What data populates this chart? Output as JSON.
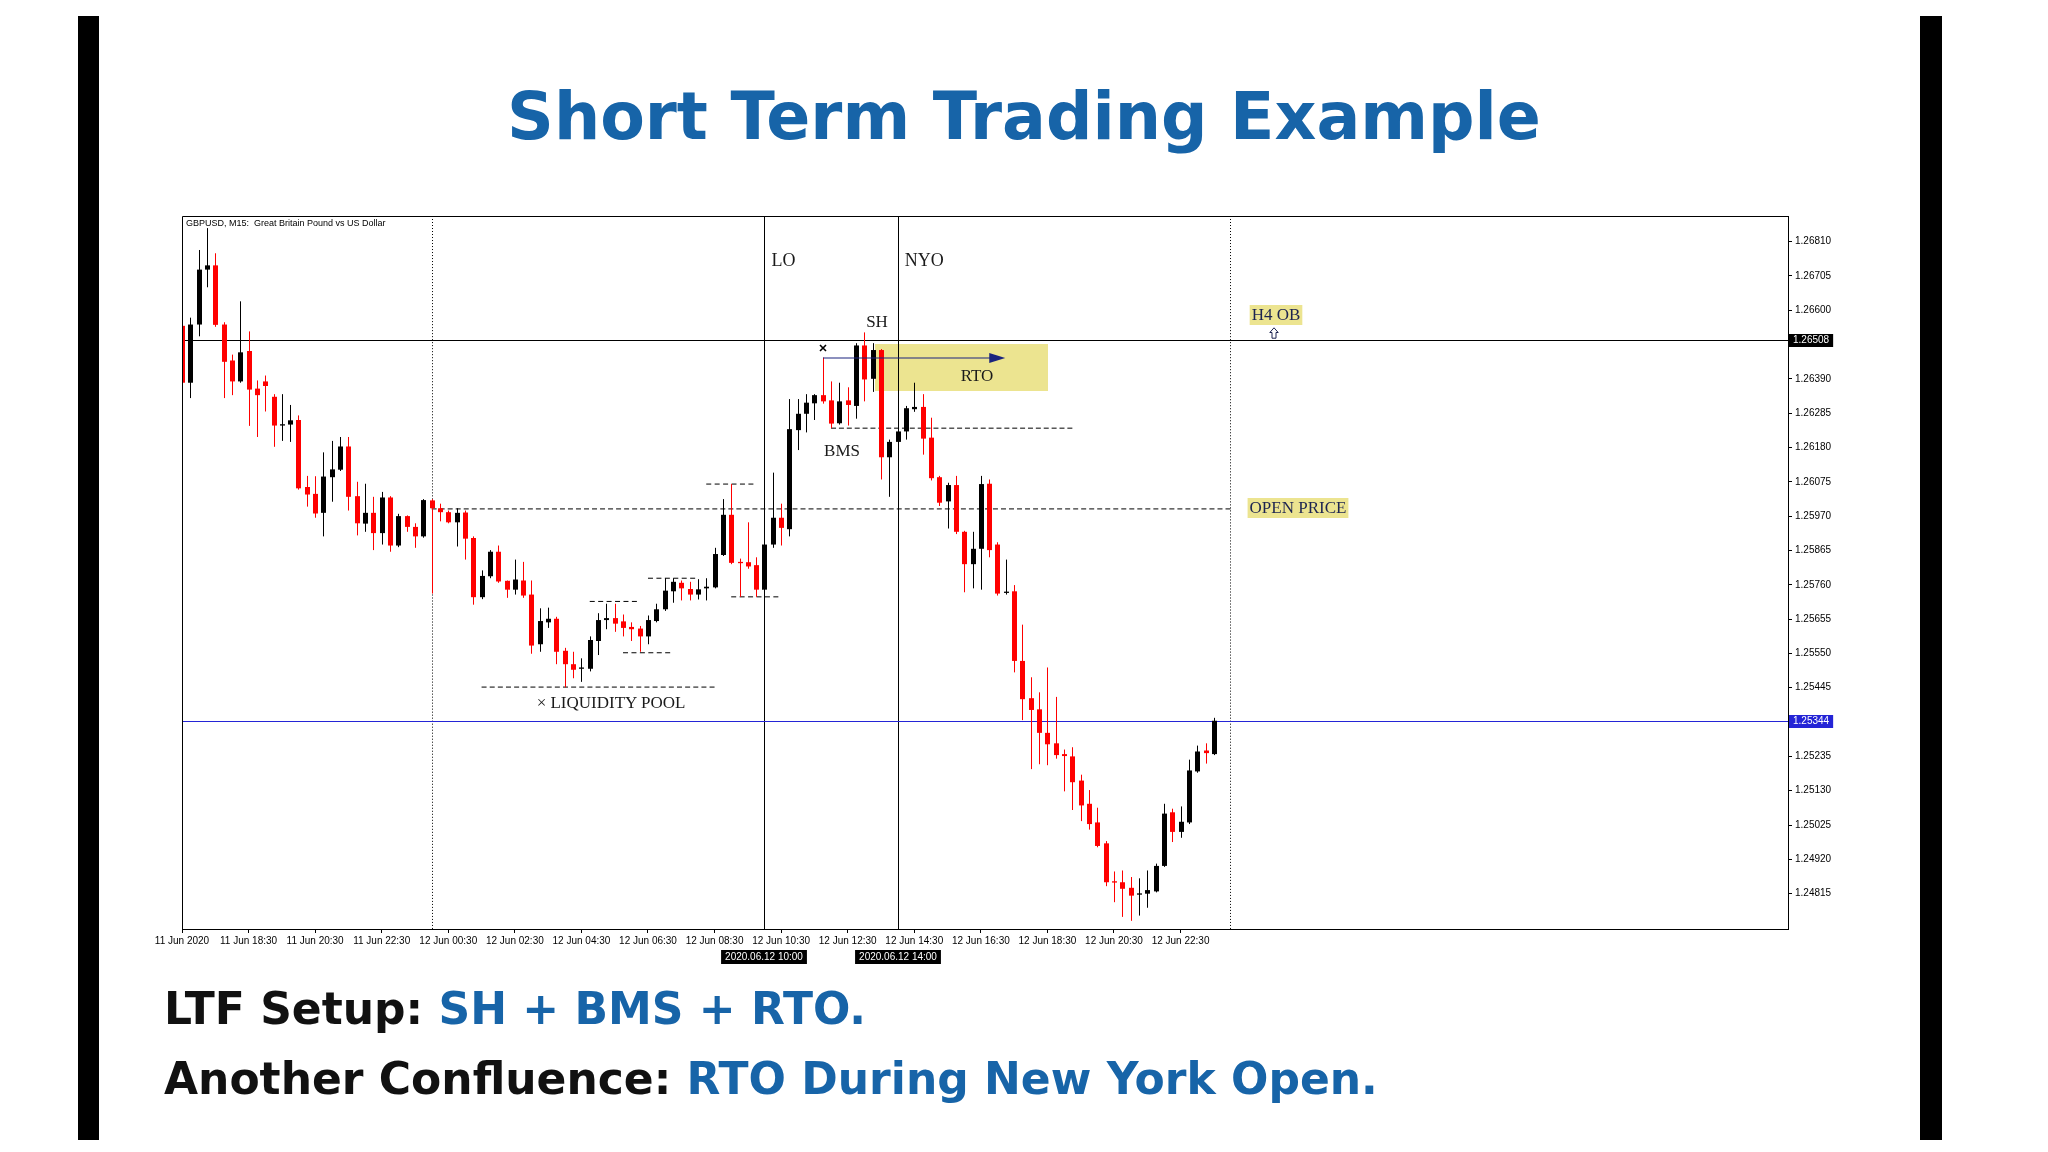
{
  "chart_data": {
    "type": "candlestick",
    "title": "Short Term Trading Example",
    "subtitle": "GBPUSD, M15:  Great Britain Pound vs US Dollar",
    "x": [
      "2020-06-11T16:30",
      "2020-06-11T16:45",
      "2020-06-11T17:00",
      "2020-06-11T17:15",
      "2020-06-11T17:30",
      "2020-06-11T17:45",
      "2020-06-11T18:00",
      "2020-06-11T18:15",
      "2020-06-11T18:30",
      "2020-06-11T18:45",
      "2020-06-11T19:00",
      "2020-06-11T19:15",
      "2020-06-11T19:30",
      "2020-06-11T19:45",
      "2020-06-11T20:00",
      "2020-06-11T20:15",
      "2020-06-11T20:30",
      "2020-06-11T20:45",
      "2020-06-11T21:00",
      "2020-06-11T21:15",
      "2020-06-11T21:30",
      "2020-06-11T21:45",
      "2020-06-11T22:00",
      "2020-06-11T22:15",
      "2020-06-11T22:30",
      "2020-06-11T22:45",
      "2020-06-11T23:00",
      "2020-06-11T23:15",
      "2020-06-11T23:30",
      "2020-06-11T23:45",
      "2020-06-12T00:00",
      "2020-06-12T00:15",
      "2020-06-12T00:30",
      "2020-06-12T00:45",
      "2020-06-12T01:00",
      "2020-06-12T01:15",
      "2020-06-12T01:30",
      "2020-06-12T01:45",
      "2020-06-12T02:00",
      "2020-06-12T02:15",
      "2020-06-12T02:30",
      "2020-06-12T02:45",
      "2020-06-12T03:00",
      "2020-06-12T03:15",
      "2020-06-12T03:30",
      "2020-06-12T03:45",
      "2020-06-12T04:00",
      "2020-06-12T04:15",
      "2020-06-12T04:30",
      "2020-06-12T04:45",
      "2020-06-12T05:00",
      "2020-06-12T05:15",
      "2020-06-12T05:30",
      "2020-06-12T05:45",
      "2020-06-12T06:00",
      "2020-06-12T06:15",
      "2020-06-12T06:30",
      "2020-06-12T06:45",
      "2020-06-12T07:00",
      "2020-06-12T07:15",
      "2020-06-12T07:30",
      "2020-06-12T07:45",
      "2020-06-12T08:00",
      "2020-06-12T08:15",
      "2020-06-12T08:30",
      "2020-06-12T08:45",
      "2020-06-12T09:00",
      "2020-06-12T09:15",
      "2020-06-12T09:30",
      "2020-06-12T09:45",
      "2020-06-12T10:00",
      "2020-06-12T10:15",
      "2020-06-12T10:30",
      "2020-06-12T10:45",
      "2020-06-12T11:00",
      "2020-06-12T11:15",
      "2020-06-12T11:30",
      "2020-06-12T11:45",
      "2020-06-12T12:00",
      "2020-06-12T12:15",
      "2020-06-12T12:30",
      "2020-06-12T12:45",
      "2020-06-12T13:00",
      "2020-06-12T13:15",
      "2020-06-12T13:30",
      "2020-06-12T13:45",
      "2020-06-12T14:00",
      "2020-06-12T14:15",
      "2020-06-12T14:30",
      "2020-06-12T14:45",
      "2020-06-12T15:00",
      "2020-06-12T15:15",
      "2020-06-12T15:30",
      "2020-06-12T15:45",
      "2020-06-12T16:00",
      "2020-06-12T16:15",
      "2020-06-12T16:30",
      "2020-06-12T16:45",
      "2020-06-12T17:00",
      "2020-06-12T17:15",
      "2020-06-12T17:30",
      "2020-06-12T17:45",
      "2020-06-12T18:00",
      "2020-06-12T18:15",
      "2020-06-12T18:30",
      "2020-06-12T18:45",
      "2020-06-12T19:00",
      "2020-06-12T19:15",
      "2020-06-12T19:30",
      "2020-06-12T19:45",
      "2020-06-12T20:00",
      "2020-06-12T20:15",
      "2020-06-12T20:30",
      "2020-06-12T20:45",
      "2020-06-12T21:00",
      "2020-06-12T21:15",
      "2020-06-12T21:30",
      "2020-06-12T21:45",
      "2020-06-12T22:00",
      "2020-06-12T22:15",
      "2020-06-12T22:30",
      "2020-06-12T22:45",
      "2020-06-12T23:00",
      "2020-06-12T23:15",
      "2020-06-12T23:30"
    ],
    "ohlc": [
      [
        1.26552,
        1.26563,
        1.26375,
        1.26378
      ],
      [
        1.26378,
        1.26577,
        1.26331,
        1.26556
      ],
      [
        1.26556,
        1.26784,
        1.2652,
        1.26724
      ],
      [
        1.26724,
        1.26851,
        1.2667,
        1.26737
      ],
      [
        1.26737,
        1.26774,
        1.26549,
        1.26555
      ],
      [
        1.26556,
        1.26563,
        1.26331,
        1.26442
      ],
      [
        1.26446,
        1.26464,
        1.2634,
        1.26382
      ],
      [
        1.26382,
        1.26627,
        1.26378,
        1.26471
      ],
      [
        1.26475,
        1.26535,
        1.26246,
        1.26357
      ],
      [
        1.2636,
        1.26385,
        1.26212,
        1.2634
      ],
      [
        1.26382,
        1.264,
        1.2629,
        1.26368
      ],
      [
        1.26335,
        1.26343,
        1.26182,
        1.26247
      ],
      [
        1.26247,
        1.26343,
        1.262,
        1.26251
      ],
      [
        1.2625,
        1.2631,
        1.26197,
        1.26263
      ],
      [
        1.26264,
        1.26278,
        1.26051,
        1.26055
      ],
      [
        1.26059,
        1.26093,
        1.25999,
        1.26036
      ],
      [
        1.26038,
        1.26092,
        1.25965,
        1.25978
      ],
      [
        1.2598,
        1.26165,
        1.25908,
        1.26091
      ],
      [
        1.26089,
        1.262,
        1.26014,
        1.26113
      ],
      [
        1.26112,
        1.26212,
        1.26108,
        1.26183
      ],
      [
        1.26183,
        1.26212,
        1.25987,
        1.26029
      ],
      [
        1.26031,
        1.26075,
        1.25911,
        1.25948
      ],
      [
        1.25947,
        1.26069,
        1.25922,
        1.2598
      ],
      [
        1.2598,
        1.26029,
        1.25866,
        1.25918
      ],
      [
        1.25918,
        1.26044,
        1.25883,
        1.26027
      ],
      [
        1.26027,
        1.26031,
        1.25861,
        1.2588
      ],
      [
        1.2588,
        1.25977,
        1.25875,
        1.2597
      ],
      [
        1.2597,
        1.25972,
        1.25922,
        1.25937
      ],
      [
        1.25937,
        1.25948,
        1.25873,
        1.25908
      ],
      [
        1.25908,
        1.26022,
        1.25904,
        1.26019
      ],
      [
        1.26018,
        1.26022,
        1.25733,
        1.25994
      ],
      [
        1.25994,
        1.26008,
        1.25954,
        1.25982
      ],
      [
        1.25982,
        1.25987,
        1.25948,
        1.25951
      ],
      [
        1.25951,
        1.25994,
        1.25877,
        1.2598
      ],
      [
        1.25981,
        1.25987,
        1.25837,
        1.25901
      ],
      [
        1.25903,
        1.25908,
        1.25699,
        1.25722
      ],
      [
        1.25722,
        1.25804,
        1.25716,
        1.25787
      ],
      [
        1.25786,
        1.25866,
        1.2578,
        1.25861
      ],
      [
        1.25861,
        1.2588,
        1.25766,
        1.2577
      ],
      [
        1.25772,
        1.25773,
        1.2572,
        1.25745
      ],
      [
        1.25745,
        1.25837,
        1.2573,
        1.25776
      ],
      [
        1.25773,
        1.2583,
        1.2572,
        1.25727
      ],
      [
        1.2573,
        1.25773,
        1.25549,
        1.25574
      ],
      [
        1.25578,
        1.25688,
        1.25555,
        1.25649
      ],
      [
        1.25645,
        1.2569,
        1.25628,
        1.25656
      ],
      [
        1.25656,
        1.25662,
        1.25517,
        1.25555
      ],
      [
        1.25558,
        1.25567,
        1.25446,
        1.25517
      ],
      [
        1.25517,
        1.25555,
        1.25474,
        1.255
      ],
      [
        1.25503,
        1.25535,
        1.25463,
        1.25507
      ],
      [
        1.25503,
        1.25602,
        1.25495,
        1.25591
      ],
      [
        1.25588,
        1.25673,
        1.25545,
        1.25652
      ],
      [
        1.25652,
        1.25702,
        1.25624,
        1.25658
      ],
      [
        1.25658,
        1.25702,
        1.25616,
        1.25641
      ],
      [
        1.25648,
        1.25669,
        1.25602,
        1.25628
      ],
      [
        1.25631,
        1.25645,
        1.25588,
        1.25624
      ],
      [
        1.25626,
        1.25634,
        1.25555,
        1.25602
      ],
      [
        1.25602,
        1.25666,
        1.25578,
        1.25652
      ],
      [
        1.25649,
        1.25702,
        1.25645,
        1.25685
      ],
      [
        1.25685,
        1.2578,
        1.2568,
        1.25742
      ],
      [
        1.2574,
        1.2578,
        1.25705,
        1.25769
      ],
      [
        1.25766,
        1.25773,
        1.25712,
        1.25749
      ],
      [
        1.25747,
        1.25769,
        1.25712,
        1.2573
      ],
      [
        1.2573,
        1.25777,
        1.25715,
        1.25746
      ],
      [
        1.25749,
        1.2578,
        1.25712,
        1.25754
      ],
      [
        1.25752,
        1.25873,
        1.25749,
        1.25854
      ],
      [
        1.25851,
        1.26022,
        1.25848,
        1.25974
      ],
      [
        1.25974,
        1.26068,
        1.25823,
        1.25827
      ],
      [
        1.2583,
        1.2584,
        1.25723,
        1.25826
      ],
      [
        1.25829,
        1.25951,
        1.25809,
        1.25816
      ],
      [
        1.2582,
        1.25844,
        1.25723,
        1.25745
      ],
      [
        1.25745,
        1.25887,
        1.25742,
        1.25883
      ],
      [
        1.25883,
        1.26103,
        1.25873,
        1.25965
      ],
      [
        1.25965,
        1.26008,
        1.2588,
        1.25934
      ],
      [
        1.2593,
        1.26328,
        1.25908,
        1.26236
      ],
      [
        1.26233,
        1.26328,
        1.26172,
        1.26283
      ],
      [
        1.26283,
        1.26343,
        1.26226,
        1.26317
      ],
      [
        1.26315,
        1.26343,
        1.26264,
        1.2634
      ],
      [
        1.2634,
        1.26455,
        1.26314,
        1.26321
      ],
      [
        1.26324,
        1.26382,
        1.26239,
        1.26253
      ],
      [
        1.26254,
        1.26378,
        1.2625,
        1.26321
      ],
      [
        1.26324,
        1.26364,
        1.26247,
        1.2631
      ],
      [
        1.26307,
        1.26499,
        1.26268,
        1.26492
      ],
      [
        1.26492,
        1.26532,
        1.26321,
        1.26388
      ],
      [
        1.2639,
        1.26499,
        1.2635,
        1.26478
      ],
      [
        1.26478,
        1.26481,
        1.26082,
        1.2615
      ],
      [
        1.2615,
        1.26204,
        1.26029,
        1.26197
      ],
      [
        1.26197,
        1.26239,
        1.26186,
        1.26229
      ],
      [
        1.26229,
        1.26307,
        1.26204,
        1.263
      ],
      [
        1.26297,
        1.26378,
        1.26289,
        1.26304
      ],
      [
        1.26304,
        1.26343,
        1.26158,
        1.26207
      ],
      [
        1.2621,
        1.26271,
        1.26079,
        1.26086
      ],
      [
        1.26089,
        1.26093,
        1.26001,
        1.26011
      ],
      [
        1.26015,
        1.26072,
        1.25932,
        1.26065
      ],
      [
        1.26065,
        1.26093,
        1.25915,
        1.25922
      ],
      [
        1.25922,
        1.25925,
        1.25737,
        1.25823
      ],
      [
        1.25823,
        1.25922,
        1.25749,
        1.2587
      ],
      [
        1.2587,
        1.26093,
        1.25745,
        1.26068
      ],
      [
        1.26069,
        1.26082,
        1.25844,
        1.25866
      ],
      [
        1.25883,
        1.2589,
        1.25727,
        1.25733
      ],
      [
        1.25735,
        1.25837,
        1.2573,
        1.25739
      ],
      [
        1.2574,
        1.25759,
        1.25492,
        1.25527
      ],
      [
        1.25527,
        1.25638,
        1.25346,
        1.2541
      ],
      [
        1.25413,
        1.25477,
        1.25196,
        1.25377
      ],
      [
        1.25379,
        1.25431,
        1.25211,
        1.25307
      ],
      [
        1.25307,
        1.25507,
        1.25208,
        1.25272
      ],
      [
        1.25275,
        1.25417,
        1.25228,
        1.25239
      ],
      [
        1.25242,
        1.25256,
        1.25128,
        1.25236
      ],
      [
        1.25235,
        1.25263,
        1.25071,
        1.25156
      ],
      [
        1.25161,
        1.25179,
        1.25037,
        1.25085
      ],
      [
        1.2509,
        1.25132,
        1.25011,
        1.25028
      ],
      [
        1.25033,
        1.25078,
        1.24957,
        1.24961
      ],
      [
        1.24969,
        1.24976,
        1.24838,
        1.2485
      ],
      [
        1.24853,
        1.24883,
        1.24789,
        1.24849
      ],
      [
        1.2485,
        1.24886,
        1.24744,
        1.2483
      ],
      [
        1.24833,
        1.24866,
        1.24732,
        1.24809
      ],
      [
        1.24812,
        1.24862,
        1.24748,
        1.24816
      ],
      [
        1.24815,
        1.24886,
        1.24772,
        1.24826
      ],
      [
        1.24822,
        1.24907,
        1.24819,
        1.249
      ],
      [
        1.249,
        1.2509,
        1.24897,
        1.2506
      ],
      [
        1.25064,
        1.25075,
        1.24973,
        1.25004
      ],
      [
        1.25004,
        1.25082,
        1.24986,
        1.25035
      ],
      [
        1.25033,
        1.25225,
        1.25028,
        1.25192
      ],
      [
        1.25189,
        1.25268,
        1.25185,
        1.2525
      ],
      [
        1.25253,
        1.25275,
        1.25213,
        1.25245
      ],
      [
        1.25242,
        1.25353,
        1.25239,
        1.25344
      ]
    ],
    "colors": [
      "#ff0000",
      "#000000",
      "#000000",
      "#000000",
      "#ff0000",
      "#ff0000",
      "#ff0000",
      "#000000",
      "#ff0000",
      "#ff0000",
      "#ff0000",
      "#ff0000",
      "#000000",
      "#000000",
      "#ff0000",
      "#ff0000",
      "#ff0000",
      "#000000",
      "#000000",
      "#000000",
      "#ff0000",
      "#ff0000",
      "#000000",
      "#ff0000",
      "#000000",
      "#ff0000",
      "#000000",
      "#ff0000",
      "#ff0000",
      "#000000",
      "#ff0000",
      "#ff0000",
      "#ff0000",
      "#000000",
      "#ff0000",
      "#ff0000",
      "#000000",
      "#000000",
      "#ff0000",
      "#ff0000",
      "#000000",
      "#ff0000",
      "#ff0000",
      "#000000",
      "#000000",
      "#ff0000",
      "#ff0000",
      "#ff0000",
      "#000000",
      "#000000",
      "#000000",
      "#000000",
      "#ff0000",
      "#ff0000",
      "#ff0000",
      "#ff0000",
      "#000000",
      "#000000",
      "#000000",
      "#000000",
      "#ff0000",
      "#ff0000",
      "#000000",
      "#000000",
      "#000000",
      "#000000",
      "#ff0000",
      "#ff0000",
      "#ff0000",
      "#ff0000",
      "#000000",
      "#000000",
      "#ff0000",
      "#000000",
      "#000000",
      "#000000",
      "#000000",
      "#ff0000",
      "#ff0000",
      "#000000",
      "#ff0000",
      "#000000",
      "#ff0000",
      "#000000",
      "#ff0000",
      "#000000",
      "#000000",
      "#000000",
      "#000000",
      "#ff0000",
      "#ff0000",
      "#ff0000",
      "#000000",
      "#ff0000",
      "#ff0000",
      "#000000",
      "#000000",
      "#ff0000",
      "#ff0000",
      "#000000",
      "#ff0000",
      "#ff0000",
      "#ff0000",
      "#ff0000",
      "#ff0000",
      "#ff0000",
      "#ff0000",
      "#ff0000",
      "#ff0000",
      "#ff0000",
      "#ff0000",
      "#ff0000",
      "#ff0000",
      "#ff0000",
      "#ff0000",
      "#000000",
      "#000000",
      "#000000",
      "#000000",
      "#ff0000",
      "#000000",
      "#000000",
      "#000000",
      "#ff0000",
      "#000000"
    ],
    "series": [
      {
        "type": "line",
        "x": [
          "2020-06-12T00:00",
          "2020-06-13T00:00"
        ],
        "values": [
          1.25992,
          1.25992
        ],
        "color": "#000000",
        "line_style": "dashed"
      },
      {
        "type": "line",
        "x": [
          "2020-06-12T12:00",
          "2020-06-12T19:15"
        ],
        "values": [
          1.26239,
          1.26239
        ],
        "color": "#000000",
        "line_style": "dashed"
      },
      {
        "type": "line",
        "x": [
          "2020-06-12T01:30",
          "2020-06-12T08:30"
        ],
        "values": [
          1.25447,
          1.25447
        ],
        "color": "#000000",
        "line_style": "dashed"
      },
      {
        "type": "line",
        "x": [
          "2020-06-12T08:15",
          "2020-06-12T09:40"
        ],
        "values": [
          1.26068,
          1.26068
        ],
        "color": "#000000",
        "line_style": "dashed"
      },
      {
        "type": "line",
        "x": [
          "2020-06-12T09:00",
          "2020-06-12T10:25"
        ],
        "values": [
          1.25723,
          1.25723
        ],
        "color": "#000000",
        "line_style": "dashed"
      },
      {
        "type": "line",
        "x": [
          "2020-06-12T06:30",
          "2020-06-12T07:55"
        ],
        "values": [
          1.2578,
          1.2578
        ],
        "color": "#000000",
        "line_style": "dashed"
      },
      {
        "type": "line",
        "x": [
          "2020-06-12T04:45",
          "2020-06-12T06:10"
        ],
        "values": [
          1.25709,
          1.25709
        ],
        "color": "#000000",
        "line_style": "dashed"
      },
      {
        "type": "line",
        "x": [
          "2020-06-12T05:45",
          "2020-06-12T07:10"
        ],
        "values": [
          1.25552,
          1.25552
        ],
        "color": "#000000",
        "line_style": "dashed"
      }
    ],
    "ref_lines": [
      {
        "axis": "x",
        "value": "2020-06-12T00:00",
        "color": "#000000",
        "line_style": "dotted"
      },
      {
        "axis": "x",
        "value": "2020-06-13T00:00",
        "color": "#000000",
        "line_style": "dotted"
      },
      {
        "axis": "x",
        "value": "2020-06-12T10:00",
        "label": "LO",
        "color": "#000000"
      },
      {
        "axis": "x",
        "value": "2020-06-12T14:00",
        "label": "NYO",
        "color": "#000000"
      },
      {
        "axis": "y",
        "value": 1.26508,
        "label": "1.26508",
        "color": "#000000"
      },
      {
        "axis": "y",
        "value": 1.25344,
        "label": "1.25344",
        "color": "#2424d6"
      }
    ],
    "annotations": [
      "SH",
      "BMS",
      {
        "text": "RTO",
        "x": "2020-06-12T11:45",
        "y": 1.26455
      },
      "× LIQUIDITY POOL",
      "OPEN PRICE",
      "H4 OB",
      "2020.06.12 10:00",
      "2020.06.12 14:00",
      "LTF Setup: SH + BMS + RTO.",
      "Another Confluence: RTO During New York Open."
    ],
    "xlim": [
      "2020-06-11T16:30",
      "2020-06-13T16:45"
    ],
    "xticks": [
      {
        "value": "2020-06-11T16:30",
        "label": "11 Jun 2020"
      },
      {
        "value": "2020-06-11T18:30",
        "label": "11 Jun 18:30"
      },
      {
        "value": "2020-06-11T20:30",
        "label": "11 Jun 20:30"
      },
      {
        "value": "2020-06-11T22:30",
        "label": "11 Jun 22:30"
      },
      {
        "value": "2020-06-12T00:30",
        "label": "12 Jun 00:30"
      },
      {
        "value": "2020-06-12T02:30",
        "label": "12 Jun 02:30"
      },
      {
        "value": "2020-06-12T04:30",
        "label": "12 Jun 04:30"
      },
      {
        "value": "2020-06-12T06:30",
        "label": "12 Jun 06:30"
      },
      {
        "value": "2020-06-12T08:30",
        "label": "12 Jun 08:30"
      },
      {
        "value": "2020-06-12T10:30",
        "label": "12 Jun 10:30"
      },
      {
        "value": "2020-06-12T12:30",
        "label": "12 Jun 12:30"
      },
      {
        "value": "2020-06-12T14:30",
        "label": "12 Jun 14:30"
      },
      {
        "value": "2020-06-12T16:30",
        "label": "12 Jun 16:30"
      },
      {
        "value": "2020-06-12T18:30",
        "label": "12 Jun 18:30"
      },
      {
        "value": "2020-06-12T20:30",
        "label": "12 Jun 20:30"
      },
      {
        "value": "2020-06-12T22:30",
        "label": "12 Jun 22:30"
      }
    ],
    "ylim": [
      1.24707,
      1.26888
    ],
    "yticks": [
      {
        "value": 1.2681,
        "label": "1.26810"
      },
      1.26705,
      {
        "value": 1.266,
        "label": "1.26600"
      },
      {
        "value": 1.2639,
        "label": "1.26390"
      },
      1.26285,
      {
        "value": 1.2618,
        "label": "1.26180"
      },
      1.26075,
      {
        "value": 1.2597,
        "label": "1.25970"
      },
      1.25865,
      {
        "value": 1.2576,
        "label": "1.25760"
      },
      1.25655,
      {
        "value": 1.2555,
        "label": "1.25550"
      },
      1.25445,
      1.25235,
      {
        "value": 1.2513,
        "label": "1.25130"
      },
      1.25025,
      {
        "value": 1.2492,
        "label": "1.24920"
      },
      1.24815
    ]
  }
}
